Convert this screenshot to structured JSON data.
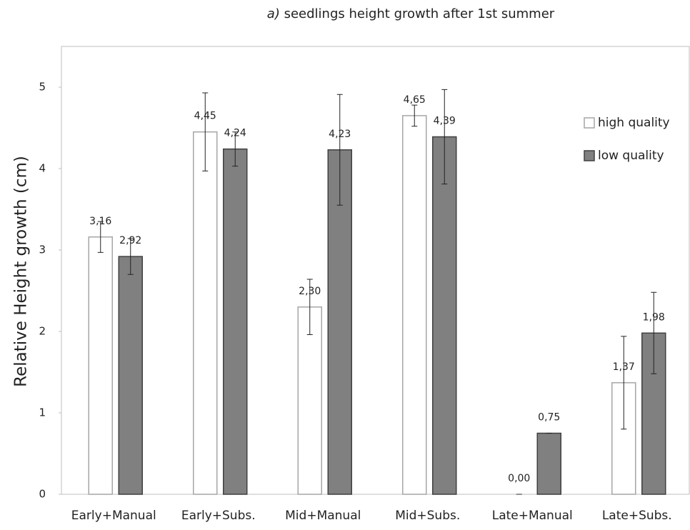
{
  "chart_data": {
    "type": "bar",
    "title_prefix": "a)",
    "title": "seedlings height growth after 1st summer",
    "y_label": "Relative Height growth (cm)",
    "categories": [
      "Early+Manual",
      "Early+Subs.",
      "Mid+Manual",
      "Mid+Subs.",
      "Late+Manual",
      "Late+Subs."
    ],
    "series": [
      {
        "name": "high quality",
        "color": "#ffffff",
        "stroke": "#a6a6a6",
        "values": [
          3.16,
          4.45,
          2.3,
          4.65,
          0.0,
          1.37
        ],
        "value_labels": [
          "3,16",
          "4,45",
          "2,30",
          "4,65",
          "0,00",
          "1,37"
        ],
        "errors": [
          0.19,
          0.48,
          0.34,
          0.13,
          0,
          0.57
        ]
      },
      {
        "name": "low quality",
        "color": "#808080",
        "stroke": "#404040",
        "values": [
          2.92,
          4.24,
          4.23,
          4.39,
          0.75,
          1.98
        ],
        "value_labels": [
          "2,92",
          "4,24",
          "4,23",
          "4,39",
          "0,75",
          "1,98"
        ],
        "errors": [
          0.22,
          0.21,
          0.68,
          0.58,
          0,
          0.5
        ]
      }
    ],
    "ylim": [
      0,
      5.5
    ],
    "yticks": [
      0,
      1,
      2,
      3,
      4,
      5
    ],
    "grid": false,
    "legend": "upper right"
  }
}
